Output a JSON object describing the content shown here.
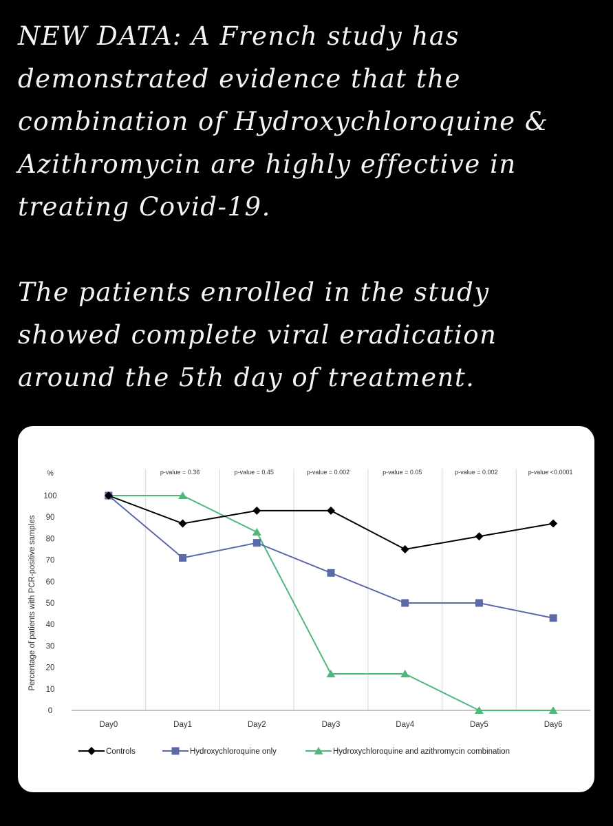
{
  "post": {
    "paragraph1": "NEW DATA: A French study has demonstrated evidence that the combination of Hydroxychloroquine & Azithromycin are highly effective in treating Covid-19.",
    "paragraph2": "The patients enrolled in the study showed complete viral eradication around the 5th day of treatment."
  },
  "chart_data": {
    "type": "line",
    "title": "",
    "ylabel": "Percentage of patients with PCR-positive samples",
    "yunit": "%",
    "xlabel": "",
    "categories": [
      "Day0",
      "Day1",
      "Day2",
      "Day3",
      "Day4",
      "Day5",
      "Day6"
    ],
    "ylim": [
      0,
      100
    ],
    "yticks": [
      0,
      10,
      20,
      30,
      40,
      50,
      60,
      70,
      80,
      90,
      100
    ],
    "grid": "vertical",
    "legend_position": "bottom",
    "p_values": [
      "p-value = 0.36",
      "p-value = 0.45",
      "p-value = 0.002",
      "p-value = 0.05",
      "p-value = 0.002",
      "p-value <0.0001"
    ],
    "series": [
      {
        "name": "Controls",
        "marker": "diamond",
        "color": "#000000",
        "values": [
          100,
          87,
          93,
          93,
          75,
          81,
          87
        ]
      },
      {
        "name": "Hydroxychloroquine only",
        "marker": "square",
        "color": "#5a69a8",
        "values": [
          100,
          71,
          78,
          64,
          50,
          50,
          43
        ]
      },
      {
        "name": "Hydroxychloroquine and azithromycin combination",
        "marker": "triangle",
        "color": "#4db87a",
        "values": [
          100,
          100,
          83,
          17,
          17,
          0,
          0
        ]
      }
    ]
  }
}
